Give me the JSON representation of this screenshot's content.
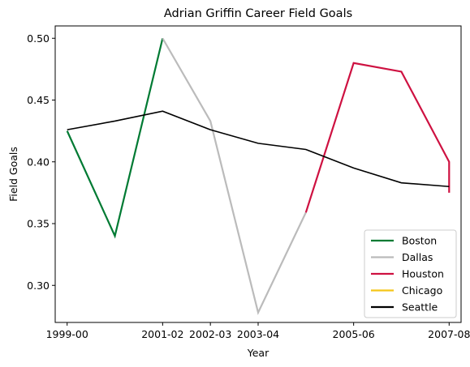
{
  "chart_data": {
    "type": "line",
    "title": "Adrian Griffin Career Field Goals",
    "xlabel": "Year",
    "ylabel": "Field Goals",
    "x_ticks": [
      "1999-00",
      "2001-02",
      "2002-03",
      "2003-04",
      "2005-06",
      "2007-08"
    ],
    "x_tick_positions": [
      0,
      2,
      3,
      4,
      6,
      8
    ],
    "xlim": [
      -0.25,
      8.25
    ],
    "ylim": [
      0.27,
      0.51
    ],
    "y_ticks": [
      0.3,
      0.35,
      0.4,
      0.45,
      0.5
    ],
    "y_tick_labels": [
      "0.30",
      "0.35",
      "0.40",
      "0.45",
      "0.50"
    ],
    "grid": false,
    "legend_position": "lower-right",
    "series": [
      {
        "name": "Boston",
        "color": "#007A33",
        "points": [
          [
            0,
            0.425
          ],
          [
            1,
            0.34
          ],
          [
            2,
            0.5
          ]
        ]
      },
      {
        "name": "Dallas",
        "color": "#BBBBBB",
        "points": [
          [
            2,
            0.5
          ],
          [
            3,
            0.433
          ],
          [
            4,
            0.278
          ],
          [
            5,
            0.359
          ]
        ]
      },
      {
        "name": "Houston",
        "color": "#CE1141",
        "points": [
          [
            5,
            0.359
          ],
          [
            6,
            0.48
          ],
          [
            7,
            0.473
          ],
          [
            8,
            0.4
          ],
          [
            8,
            0.375
          ]
        ]
      },
      {
        "name": "Chicago",
        "color": "#F5C518",
        "points": []
      },
      {
        "name": "Seattle",
        "color": "#000000",
        "points": [
          [
            0,
            0.426
          ],
          [
            1,
            0.433
          ],
          [
            2,
            0.441
          ],
          [
            3,
            0.426
          ],
          [
            4,
            0.415
          ],
          [
            5,
            0.41
          ],
          [
            6,
            0.395
          ],
          [
            7,
            0.383
          ],
          [
            8,
            0.38
          ]
        ]
      }
    ]
  }
}
